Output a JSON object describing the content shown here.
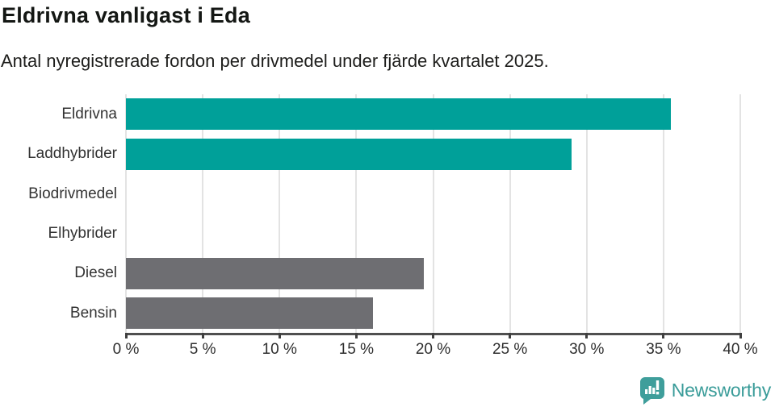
{
  "header": {
    "title": "Eldrivna vanligast i Eda",
    "subtitle": "Antal nyregistrerade fordon per drivmedel under fjärde kvartalet 2025."
  },
  "chart_data": {
    "type": "bar",
    "orientation": "horizontal",
    "title": "Eldrivna vanligast i Eda",
    "subtitle": "Antal nyregistrerade fordon per drivmedel under fjärde kvartalet 2025.",
    "categories": [
      "Eldrivna",
      "Laddhybrider",
      "Biodrivmedel",
      "Elhybrider",
      "Diesel",
      "Bensin"
    ],
    "values": [
      35.5,
      29.0,
      0,
      0,
      19.4,
      16.1
    ],
    "unit": "%",
    "xlabel": "",
    "ylabel": "",
    "xlim": [
      0,
      40
    ],
    "x_tick_values": [
      0,
      5,
      10,
      15,
      20,
      25,
      30,
      35,
      40
    ],
    "x_tick_labels": [
      "0 %",
      "5 %",
      "10 %",
      "15 %",
      "20 %",
      "25 %",
      "30 %",
      "35 %",
      "40 %"
    ],
    "grid": "vertical-only",
    "legend": "none",
    "bar_colors": [
      "#00a099",
      "#00a099",
      "#6e6e72",
      "#6e6e72",
      "#6e6e72",
      "#6e6e72"
    ],
    "colors": {
      "highlight": "#00a099",
      "neutral": "#6e6e72",
      "gridline": "#e3e3e3",
      "axis_line": "#4f4f4f",
      "label_text": "#333333"
    }
  },
  "footer": {
    "brand": "Newsworthy",
    "brand_color": "#3a9c99",
    "logo_icon": "newsworthy-bar-chart-speech-bubble"
  }
}
